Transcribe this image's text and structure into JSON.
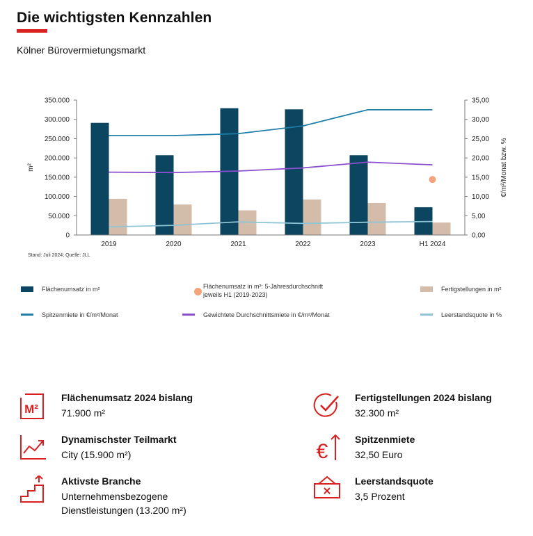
{
  "header": {
    "title": "Die wichtigsten  Kennzahlen",
    "subtitle": "Kölner Bürovermietungsmarkt",
    "accent_color": "#d7201f"
  },
  "chart_data": {
    "type": "bar",
    "categories": [
      "2019",
      "2020",
      "2021",
      "2022",
      "2023",
      "H1 2024"
    ],
    "left_axis": {
      "label": "m²",
      "range": [
        0,
        350000
      ],
      "ticks": [
        "0",
        "50.000",
        "100.000",
        "150.000",
        "200.000",
        "250.000",
        "300.000",
        "350.000"
      ]
    },
    "right_axis": {
      "label": "€/m²/Monat bzw. %",
      "range": [
        0,
        35
      ],
      "ticks": [
        "0,00",
        "5,00",
        "10,00",
        "15,00",
        "20,00",
        "25,00",
        "30,00",
        "35,00"
      ]
    },
    "series": [
      {
        "name": "Flächenumsatz  in m²",
        "type": "bar",
        "axis": "left",
        "color": "#0b4560",
        "values": [
          291000,
          207000,
          329000,
          326000,
          207000,
          71900
        ]
      },
      {
        "name": "Fertigstellungen  in m²",
        "type": "bar",
        "axis": "left",
        "color": "#d3bcaa",
        "values": [
          94000,
          79000,
          64000,
          92000,
          83000,
          32300
        ]
      },
      {
        "name": "Spitzenmiete  in €/m²/Monat",
        "type": "line",
        "axis": "right",
        "color": "#1f7ea6",
        "values": [
          25.8,
          25.8,
          26.3,
          28.3,
          32.5,
          32.5
        ]
      },
      {
        "name": "Gewichtete Durchschnittsmiete  in €/m²/Monat",
        "type": "line",
        "axis": "right",
        "color": "#8b4fd0",
        "values": [
          16.3,
          16.2,
          16.6,
          17.4,
          18.9,
          18.2
        ]
      },
      {
        "name": "Leerstandsquote  in %",
        "type": "line",
        "axis": "right",
        "color": "#8fc4d6",
        "values": [
          2.1,
          2.5,
          3.4,
          3.0,
          3.3,
          3.5
        ]
      },
      {
        "name": "Flächenumsatz  in m²: 5-Jahresdurchschnitt jeweils H1 (2019-2023)",
        "type": "point",
        "axis": "right",
        "color": "#f4a37a",
        "category": "H1 2024",
        "value": 14.4
      }
    ],
    "source": "Stand: Juli 2024; Quelle: JLL",
    "grid": false,
    "legend_position": "bottom"
  },
  "legend": {
    "flaechenumsatz": "Flächenumsatz  in m²",
    "durchschnitt_line1": "Flächenumsatz  in m²: 5-Jahresdurchschnitt",
    "durchschnitt_line2": "jeweils H1 (2019-2023)",
    "fertigstellungen": "Fertigstellungen  in m²",
    "spitzenmiete": "Spitzenmiete  in €/m²/Monat",
    "durchschnittsmiete": "Gewichtete Durchschnittsmiete  in €/m²/Monat",
    "leerstand": "Leerstandsquote  in %"
  },
  "kpis": {
    "flaechenumsatz": {
      "label": "Flächenumsatz 2024 bislang",
      "value": "71.900 m²",
      "icon": "m2-icon",
      "icon_text": "M²"
    },
    "fertigstellungen": {
      "label": "Fertigstellungen 2024 bislang",
      "value": "32.300 m²",
      "icon": "checkmark-circle-icon"
    },
    "teilmarkt": {
      "label": "Dynamischster Teilmarkt",
      "value": "City (15.900 m²)",
      "icon": "trend-chart-icon"
    },
    "spitzenmiete": {
      "label": "Spitzenmiete",
      "value": "32,50 Euro",
      "icon": "euro-up-icon",
      "icon_text": "€"
    },
    "branche": {
      "label": "Aktivste Branche",
      "value_line1": "Unternehmensbezogene",
      "value_line2": "Dienstleistungen (13.200 m²)",
      "icon": "steps-up-icon"
    },
    "leerstand": {
      "label": "Leerstandsquote",
      "value": "3,5 Prozent",
      "icon": "vacant-sign-icon"
    }
  }
}
